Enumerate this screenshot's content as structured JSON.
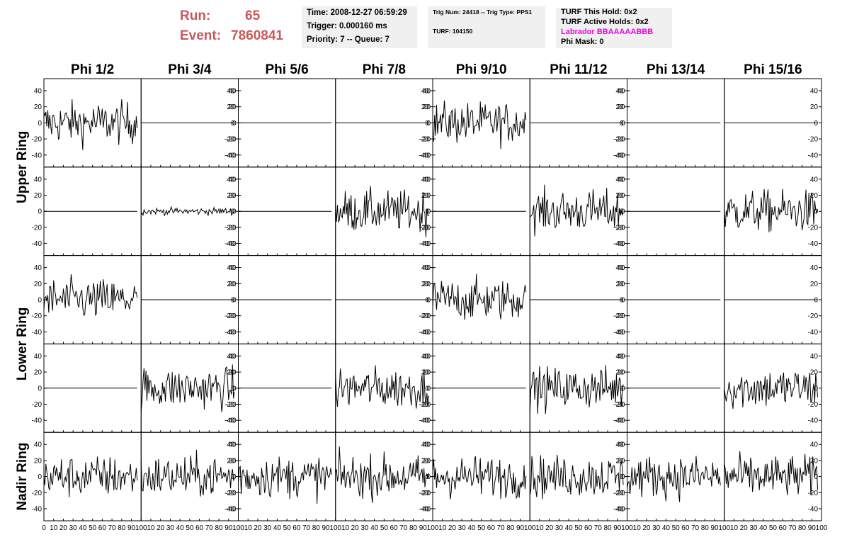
{
  "header": {
    "run_label": "Run:",
    "run_value": "65",
    "event_label": "Event:",
    "event_value": "7860841",
    "time_line": "Time: 2008-12-27 06:59:29",
    "trigger_line": "Trigger: 0.000160 ms",
    "priority_line": "Priority: 7 -- Queue: 7",
    "trig_line": "Trig Num: 24418 -- Trig Type: PPS1",
    "turf_line": "TURF: 104150",
    "turf_hold": "TURF This Hold: 0x2",
    "turf_active": "TURF Active Holds: 0x2",
    "labrador": "Labrador BBAAAAABBB",
    "phi_mask": "Phi Mask: 0",
    "colors": {
      "run_text": "#c8595c",
      "labrador_text": "#ee00ee",
      "info_bg": "#f0f0f0"
    }
  },
  "chart_data": {
    "type": "line",
    "columns": [
      "Phi 1/2",
      "Phi 3/4",
      "Phi 5/6",
      "Phi 7/8",
      "Phi 9/10",
      "Phi 11/12",
      "Phi 13/14",
      "Phi 15/16"
    ],
    "ring_labels": [
      {
        "name": "Upper Ring",
        "rows": [
          0,
          1
        ]
      },
      {
        "name": "Lower Ring",
        "rows": [
          2,
          3
        ]
      },
      {
        "name": "Nadir Ring",
        "rows": [
          4
        ]
      }
    ],
    "xlim": [
      0,
      100
    ],
    "ylim": [
      -55,
      55
    ],
    "x_ticks": [
      0,
      10,
      20,
      30,
      40,
      50,
      60,
      70,
      80,
      90,
      100
    ],
    "y_ticks": [
      -40,
      -20,
      0,
      20,
      40
    ],
    "samples": 97,
    "panels": [
      [
        "noise",
        "flat",
        "flat",
        "flat",
        "noise",
        "flat",
        "flat",
        "flat"
      ],
      [
        "flat",
        "small",
        "flat",
        "noise",
        "flat",
        "noise",
        "flat",
        "noise"
      ],
      [
        "noise",
        "flat",
        "flat",
        "flat",
        "noise",
        "flat",
        "flat",
        "flat"
      ],
      [
        "flat",
        "noise",
        "flat",
        "noise",
        "flat",
        "noise",
        "flat",
        "noise"
      ],
      [
        "noise",
        "noise",
        "noise",
        "noise",
        "noise",
        "noise",
        "noise",
        "noise"
      ]
    ],
    "amplitudes": {
      "noise": 13,
      "small": 2.2,
      "flat": 0
    },
    "grid": false
  }
}
